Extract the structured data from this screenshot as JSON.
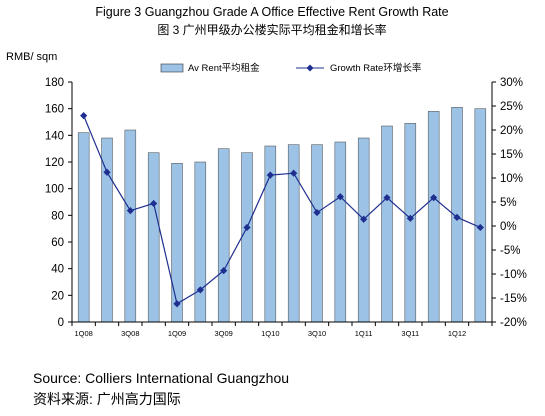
{
  "chart_data": {
    "type": "bar+line",
    "title": "Figure 3 Guangzhou Grade A Office Effective Rent Growth Rate",
    "subtitle": "图 3 广州甲级办公楼实际平均租金和增长率",
    "ylabel_left": "RMB/ sqm",
    "ylim_left": [
      0,
      180
    ],
    "yticks_left": [
      "0",
      "20",
      "40",
      "60",
      "80",
      "100",
      "120",
      "140",
      "160",
      "180"
    ],
    "ylim_right": [
      -20,
      30
    ],
    "yticks_right": [
      "-20%",
      "-15%",
      "-10%",
      "-5%",
      "0%",
      "5%",
      "10%",
      "15%",
      "20%",
      "25%",
      "30%"
    ],
    "categories": [
      "1Q08",
      "2Q08",
      "3Q08",
      "4Q08",
      "1Q09",
      "2Q09",
      "3Q09",
      "4Q09",
      "1Q10",
      "2Q10",
      "3Q10",
      "4Q10",
      "1Q11",
      "2Q11",
      "3Q11",
      "4Q11",
      "1Q12",
      "2Q12"
    ],
    "x_tick_labels": [
      "1Q08",
      "",
      "3Q08",
      "",
      "1Q09",
      "",
      "3Q09",
      "",
      "1Q10",
      "",
      "3Q10",
      "",
      "1Q11",
      "",
      "3Q11",
      "",
      "1Q12",
      ""
    ],
    "series": [
      {
        "name": "Av Rent平均租金",
        "type": "bar",
        "axis": "left",
        "color": "#9cc3e6",
        "values": [
          142,
          138,
          144,
          127,
          119,
          120,
          130,
          127,
          132,
          133,
          133,
          135,
          138,
          147,
          149,
          158,
          161,
          160
        ]
      },
      {
        "name": "Growth Rate环增长率",
        "type": "line",
        "axis": "right",
        "color": "#1f2f8f",
        "values": [
          23.0,
          11.2,
          3.2,
          4.7,
          -16.2,
          -13.3,
          -9.3,
          -0.3,
          10.6,
          11.0,
          2.8,
          6.1,
          1.4,
          5.9,
          1.6,
          5.9,
          1.8,
          -0.3
        ]
      }
    ],
    "legend_position": "top"
  },
  "source_en": "Source:  Colliers International Guangzhou",
  "source_cn": "资料来源: 广州高力国际"
}
